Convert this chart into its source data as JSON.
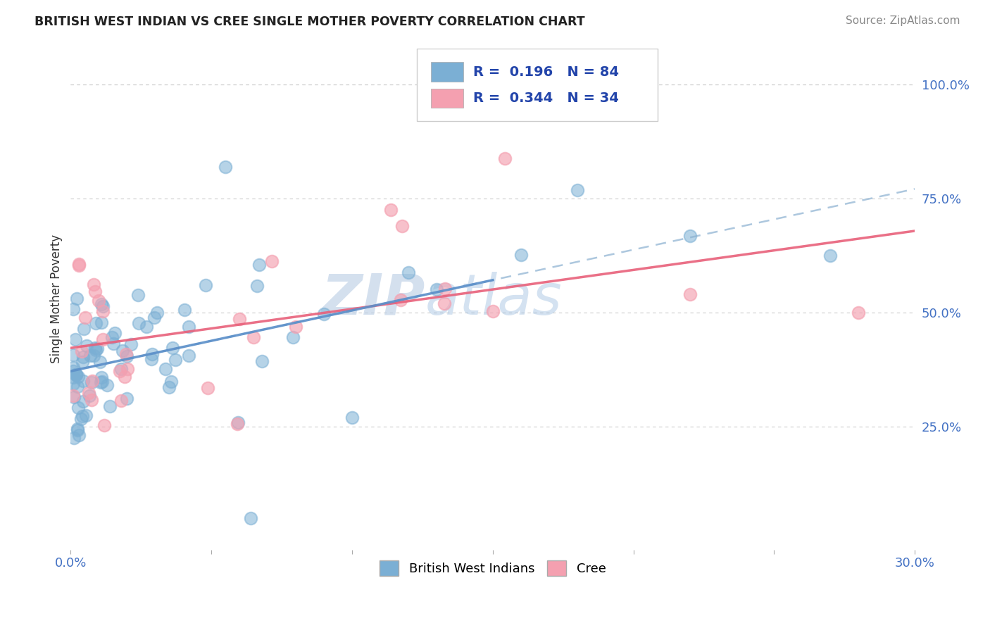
{
  "title": "BRITISH WEST INDIAN VS CREE SINGLE MOTHER POVERTY CORRELATION CHART",
  "source": "Source: ZipAtlas.com",
  "ylabel": "Single Mother Poverty",
  "xlim": [
    0.0,
    0.3
  ],
  "ylim": [
    -0.02,
    1.08
  ],
  "yticks_right": [
    0.25,
    0.5,
    0.75,
    1.0
  ],
  "ytick_right_labels": [
    "25.0%",
    "50.0%",
    "75.0%",
    "100.0%"
  ],
  "R_blue": 0.196,
  "N_blue": 84,
  "R_pink": 0.344,
  "N_pink": 34,
  "blue_color": "#7bafd4",
  "pink_color": "#f4a0b0",
  "trend_blue_color": "#5b8fc9",
  "trend_pink_color": "#e8607a",
  "watermark_zip": "ZIP",
  "watermark_atlas": "atlas",
  "watermark_color_zip": "#c5d8ee",
  "watermark_color_atlas": "#a8c8e8",
  "background_color": "#ffffff",
  "grid_color": "#cccccc",
  "title_color": "#222222",
  "source_color": "#888888",
  "axis_label_color": "#333333",
  "tick_color": "#4472c4",
  "legend_box_color": "#cccccc"
}
